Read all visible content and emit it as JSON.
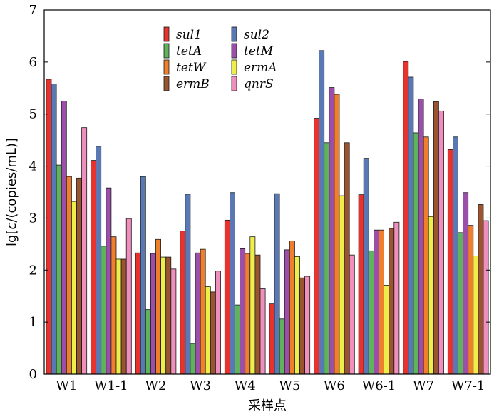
{
  "chart_data": {
    "type": "bar",
    "xlabel": "采样点",
    "ylabel_prefix": "lg[",
    "ylabel_var": "c",
    "ylabel_suffix": "/(copies/mL)]",
    "ylim": [
      0,
      7
    ],
    "yticks": [
      0,
      1,
      2,
      3,
      4,
      5,
      6,
      7
    ],
    "grid": false,
    "legend_position": "top-center",
    "categories": [
      "W1",
      "W1-1",
      "W2",
      "W3",
      "W4",
      "W5",
      "W6",
      "W6-1",
      "W7",
      "W7-1"
    ],
    "series": [
      {
        "name": "sul1",
        "color": "#e8322e",
        "values": [
          5.67,
          4.11,
          2.33,
          2.75,
          2.96,
          1.35,
          4.92,
          3.45,
          6.01,
          4.32
        ]
      },
      {
        "name": "sul2",
        "color": "#5a79b4",
        "values": [
          5.58,
          4.38,
          3.8,
          3.46,
          3.49,
          3.47,
          6.22,
          4.15,
          5.71,
          4.56
        ]
      },
      {
        "name": "tetA",
        "color": "#5fb35c",
        "values": [
          4.02,
          2.46,
          1.24,
          0.59,
          1.33,
          1.06,
          4.45,
          2.37,
          4.64,
          2.72
        ]
      },
      {
        "name": "tetM",
        "color": "#9b4fa8",
        "values": [
          5.25,
          3.58,
          2.32,
          2.33,
          2.41,
          2.39,
          5.51,
          2.77,
          5.29,
          3.49
        ]
      },
      {
        "name": "tetW",
        "color": "#f07f2d",
        "values": [
          3.8,
          2.64,
          2.59,
          2.4,
          2.32,
          2.56,
          5.38,
          2.77,
          4.56,
          2.86
        ]
      },
      {
        "name": "ermA",
        "color": "#eeee4a",
        "values": [
          3.32,
          2.21,
          2.25,
          1.68,
          2.64,
          2.26,
          3.43,
          1.71,
          3.03,
          2.27
        ]
      },
      {
        "name": "ermB",
        "color": "#9a5530",
        "values": [
          3.77,
          2.21,
          2.25,
          1.58,
          2.29,
          1.85,
          4.45,
          2.8,
          5.24,
          3.26
        ]
      },
      {
        "name": "qnrS",
        "color": "#f08fbd",
        "values": [
          4.74,
          2.99,
          2.02,
          1.98,
          1.64,
          1.88,
          2.29,
          2.92,
          5.06,
          2.95
        ]
      }
    ],
    "legend_order": [
      "sul1",
      "sul2",
      "tetA",
      "tetM",
      "tetW",
      "ermA",
      "ermB",
      "qnrS"
    ]
  }
}
